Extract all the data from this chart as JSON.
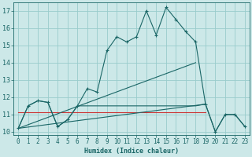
{
  "xlabel": "Humidex (Indice chaleur)",
  "background_color": "#cce8e8",
  "grid_color": "#99cccc",
  "line_color": "#1a6666",
  "red_line_color": "#cc3333",
  "xlim": [
    -0.5,
    23.5
  ],
  "ylim": [
    9.8,
    17.5
  ],
  "yticks": [
    10,
    11,
    12,
    13,
    14,
    15,
    16,
    17
  ],
  "xticks": [
    0,
    1,
    2,
    3,
    4,
    5,
    6,
    7,
    8,
    9,
    10,
    11,
    12,
    13,
    14,
    15,
    16,
    17,
    18,
    19,
    20,
    21,
    22,
    23
  ],
  "y_main": [
    10.2,
    11.5,
    11.8,
    11.7,
    10.3,
    10.7,
    11.5,
    12.5,
    12.3,
    14.7,
    15.5,
    15.2,
    15.5,
    17.0,
    15.6,
    17.2,
    16.5,
    15.8,
    15.2,
    11.6,
    10.0,
    11.0,
    11.0,
    10.3
  ],
  "y_second": [
    10.2,
    11.5,
    11.8,
    11.7,
    10.3,
    10.7,
    11.5,
    11.5,
    11.5,
    11.5,
    11.5,
    11.5,
    11.5,
    11.5,
    11.5,
    11.5,
    11.5,
    11.5,
    11.5,
    11.6,
    10.0,
    11.0,
    11.0,
    10.3
  ],
  "trend1_x": [
    0,
    18
  ],
  "trend1_y": [
    10.2,
    14.0
  ],
  "trend2_x": [
    0,
    19
  ],
  "trend2_y": [
    10.2,
    11.6
  ],
  "hline_y": 11.15,
  "hline_x": [
    0,
    19
  ]
}
